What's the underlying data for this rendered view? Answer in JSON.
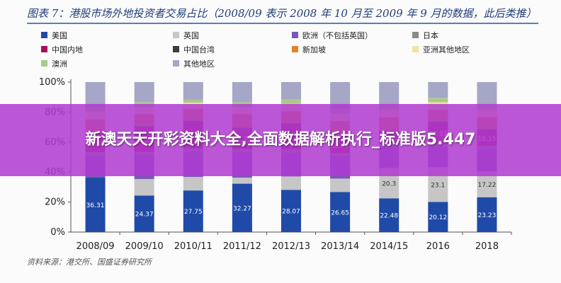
{
  "chart_data": {
    "type": "bar",
    "stacked": true,
    "title": "图表 7：港股市场外地投资者交易占比（2008/09 表示 2008 年 10 月至 2009 年 9 月的数据，此后类推）",
    "categories": [
      "2008/09",
      "2009/10",
      "2010/11",
      "2011/12",
      "2012/13",
      "2013/14",
      "2014/15",
      "2016",
      "2018"
    ],
    "ylim": [
      0,
      100
    ],
    "y_ticks": [
      "0%",
      "20%",
      "40%",
      "60%",
      "80%",
      "100%"
    ],
    "grid": false,
    "legend_position": "top",
    "series": [
      {
        "name": "美国",
        "color": "#1f4aa8",
        "values": [
          36.31,
          24.37,
          27.75,
          32.27,
          28.07,
          26.65,
          22.48,
          20.12,
          23.23
        ]
      },
      {
        "name": "英国",
        "color": "#c6c6c6",
        "values": [
          0,
          11.0,
          9.0,
          4.0,
          9.0,
          9.0,
          20.3,
          23.1,
          17.22
        ]
      },
      {
        "name": "欧洲（不包括英国）",
        "color": "#7b57b8",
        "values": [
          15,
          16,
          17,
          17,
          16,
          15,
          14,
          14,
          15
        ]
      },
      {
        "name": "日本",
        "color": "#8a8a8a",
        "values": [
          2,
          2,
          2,
          2,
          2,
          2,
          2,
          2,
          2
        ]
      },
      {
        "name": "中国内地",
        "color": "#a80d5a",
        "values": [
          11.86,
          16.26,
          17.5,
          13.33,
          16.4,
          10.42,
          7.64,
          13.31,
          10.15
        ]
      },
      {
        "name": "中国台湾",
        "color": "#3d3d3d",
        "values": [
          1,
          1,
          1,
          1,
          1,
          1,
          1,
          1,
          1
        ]
      },
      {
        "name": "新加坡",
        "color": "#e8802a",
        "values": [
          9,
          8,
          8,
          9,
          8,
          10,
          9,
          8,
          8
        ]
      },
      {
        "name": "亚洲其他地区",
        "color": "#f3e3a0",
        "values": [
          5,
          5,
          4,
          5,
          5,
          5,
          5,
          5,
          5
        ]
      },
      {
        "name": "澳洲",
        "color": "#a9c98a",
        "values": [
          3,
          3,
          2,
          3,
          3,
          3,
          3,
          3,
          3
        ]
      },
      {
        "name": "其他地区",
        "color": "#a6a6c6",
        "values": [
          16.83,
          13.37,
          11.75,
          13.4,
          11.53,
          17.93,
          15.58,
          10.47,
          15.4
        ]
      }
    ],
    "data_labels": {
      "美国": [
        "36.31",
        "24.37",
        "27.75",
        "32.27",
        "28.07",
        "26.65",
        "22.48",
        "20.12",
        "23.23"
      ],
      "英国": [
        "",
        "",
        "",
        "",
        "",
        "",
        "20.3",
        "23.1",
        "17.22"
      ],
      "中国内地": [
        "11.86",
        "16.26",
        "17.5",
        "13.33",
        "16.4",
        "10.42",
        "7.64",
        "13.31",
        "10.15"
      ]
    }
  },
  "page": {
    "title": "图表 7：港股市场外地投资者交易占比（2008/09 表示 2008 年 10 月至 2009 年 9 月的数据，此后类推）",
    "source": "资料来源：港交所、国盛证券研究所",
    "banner": "新澳天天开彩资料大全,全面数据解析执行_标准版5.447"
  },
  "colors": {
    "axis": "#555555",
    "banner_bg": "#b03ad0",
    "title": "#1f3d7a"
  }
}
